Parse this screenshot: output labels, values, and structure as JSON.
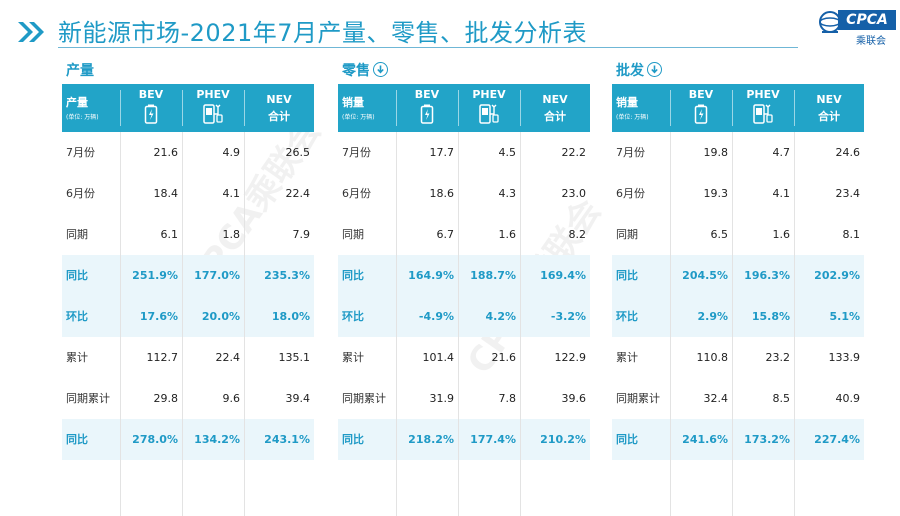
{
  "header": {
    "title": "新能源市场-2021年7月产量、零售、批发分析表",
    "logo_text": "CPCA",
    "logo_sub": "乘联会"
  },
  "columns": {
    "bev": "BEV",
    "phev": "PHEV",
    "nev_line1": "NEV",
    "nev_line2": "合计"
  },
  "panels": [
    {
      "label": "产量",
      "has_arrow": false,
      "head_main": "产量",
      "head_sub": "(单位: 万辆)",
      "rows": [
        {
          "label": "7月份",
          "bev": "21.6",
          "phev": "4.9",
          "nev": "26.5",
          "hl": false
        },
        {
          "label": "6月份",
          "bev": "18.4",
          "phev": "4.1",
          "nev": "22.4",
          "hl": false
        },
        {
          "label": "同期",
          "bev": "6.1",
          "phev": "1.8",
          "nev": "7.9",
          "hl": false
        },
        {
          "label": "同比",
          "bev": "251.9%",
          "phev": "177.0%",
          "nev": "235.3%",
          "hl": true
        },
        {
          "label": "环比",
          "bev": "17.6%",
          "phev": "20.0%",
          "nev": "18.0%",
          "hl": true
        },
        {
          "label": "累计",
          "bev": "112.7",
          "phev": "22.4",
          "nev": "135.1",
          "hl": false
        },
        {
          "label": "同期累计",
          "bev": "29.8",
          "phev": "9.6",
          "nev": "39.4",
          "hl": false
        },
        {
          "label": "同比",
          "bev": "278.0%",
          "phev": "134.2%",
          "nev": "243.1%",
          "hl": true
        }
      ]
    },
    {
      "label": "零售",
      "has_arrow": true,
      "head_main": "销量",
      "head_sub": "(单位: 万辆)",
      "rows": [
        {
          "label": "7月份",
          "bev": "17.7",
          "phev": "4.5",
          "nev": "22.2",
          "hl": false
        },
        {
          "label": "6月份",
          "bev": "18.6",
          "phev": "4.3",
          "nev": "23.0",
          "hl": false
        },
        {
          "label": "同期",
          "bev": "6.7",
          "phev": "1.6",
          "nev": "8.2",
          "hl": false
        },
        {
          "label": "同比",
          "bev": "164.9%",
          "phev": "188.7%",
          "nev": "169.4%",
          "hl": true
        },
        {
          "label": "环比",
          "bev": "-4.9%",
          "phev": "4.2%",
          "nev": "-3.2%",
          "hl": true
        },
        {
          "label": "累计",
          "bev": "101.4",
          "phev": "21.6",
          "nev": "122.9",
          "hl": false
        },
        {
          "label": "同期累计",
          "bev": "31.9",
          "phev": "7.8",
          "nev": "39.6",
          "hl": false
        },
        {
          "label": "同比",
          "bev": "218.2%",
          "phev": "177.4%",
          "nev": "210.2%",
          "hl": true
        }
      ]
    },
    {
      "label": "批发",
      "has_arrow": true,
      "head_main": "销量",
      "head_sub": "(单位: 万辆)",
      "rows": [
        {
          "label": "7月份",
          "bev": "19.8",
          "phev": "4.7",
          "nev": "24.6",
          "hl": false
        },
        {
          "label": "6月份",
          "bev": "19.3",
          "phev": "4.1",
          "nev": "23.4",
          "hl": false
        },
        {
          "label": "同期",
          "bev": "6.5",
          "phev": "1.6",
          "nev": "8.1",
          "hl": false
        },
        {
          "label": "同比",
          "bev": "204.5%",
          "phev": "196.3%",
          "nev": "202.9%",
          "hl": true
        },
        {
          "label": "环比",
          "bev": "2.9%",
          "phev": "15.8%",
          "nev": "5.1%",
          "hl": true
        },
        {
          "label": "累计",
          "bev": "110.8",
          "phev": "23.2",
          "nev": "133.9",
          "hl": false
        },
        {
          "label": "同期累计",
          "bev": "32.4",
          "phev": "8.5",
          "nev": "40.9",
          "hl": false
        },
        {
          "label": "同比",
          "bev": "241.6%",
          "phev": "173.2%",
          "nev": "227.4%",
          "hl": true
        }
      ]
    }
  ]
}
